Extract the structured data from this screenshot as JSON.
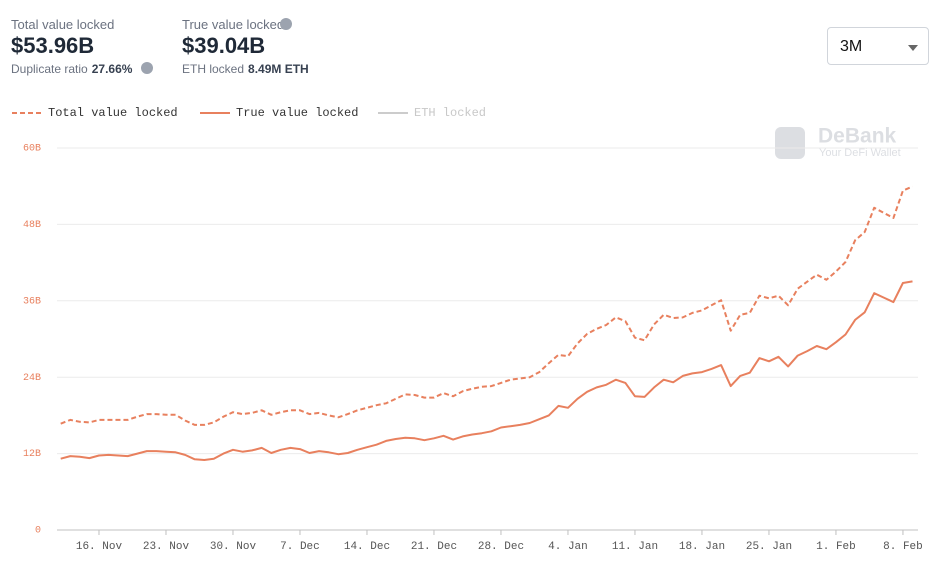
{
  "header": {
    "tvl_label": "Total value locked",
    "tvl_value": "$53.96B",
    "dup_label": "Duplicate ratio",
    "dup_value": "27.66%",
    "true_label": "True value locked",
    "true_value": "$39.04B",
    "eth_label": "ETH locked",
    "eth_value": "8.49M ETH"
  },
  "range_select": "3M",
  "watermark": {
    "brand": "DeBank",
    "tagline": "Your DeFi Wallet"
  },
  "chart_data": {
    "type": "line",
    "categories": [
      null,
      null,
      null,
      null,
      "16. Nov",
      null,
      null,
      null,
      null,
      null,
      null,
      "23. Nov",
      null,
      null,
      null,
      null,
      null,
      null,
      "30. Nov",
      null,
      null,
      null,
      null,
      null,
      null,
      "7. Dec",
      null,
      null,
      null,
      null,
      null,
      null,
      "14. Dec",
      null,
      null,
      null,
      null,
      null,
      null,
      "21. Dec",
      null,
      null,
      null,
      null,
      null,
      null,
      "28. Dec",
      null,
      null,
      null,
      null,
      null,
      null,
      "4. Jan",
      null,
      null,
      null,
      null,
      null,
      null,
      "11. Jan",
      null,
      null,
      null,
      null,
      null,
      null,
      "18. Jan",
      null,
      null,
      null,
      null,
      null,
      null,
      "25. Jan",
      null,
      null,
      null,
      null,
      null,
      null,
      "1. Feb",
      null,
      null,
      null,
      null,
      null,
      null,
      "8. Feb",
      null
    ],
    "series": [
      {
        "name": "Total value locked",
        "color": "#e8805e",
        "dashed": true,
        "values": [
          16.7,
          17.3,
          17.0,
          16.9,
          17.3,
          17.3,
          17.3,
          17.3,
          17.8,
          18.2,
          18.2,
          18.1,
          18.1,
          17.2,
          16.5,
          16.5,
          16.9,
          17.8,
          18.5,
          18.2,
          18.4,
          18.8,
          18.1,
          18.5,
          18.8,
          18.8,
          18.2,
          18.4,
          18.0,
          17.7,
          18.2,
          18.8,
          19.2,
          19.6,
          19.9,
          20.6,
          21.3,
          21.2,
          20.8,
          20.8,
          21.5,
          21.0,
          21.8,
          22.2,
          22.5,
          22.6,
          23.1,
          23.6,
          23.8,
          24.0,
          24.8,
          26.2,
          27.5,
          27.3,
          29.3,
          30.8,
          31.6,
          32.2,
          33.4,
          32.8,
          30.2,
          29.8,
          32.3,
          33.8,
          33.3,
          33.4,
          34.1,
          34.5,
          35.3,
          36.1,
          31.3,
          33.8,
          34.1,
          36.8,
          36.4,
          36.8,
          35.3,
          37.9,
          39.0,
          40.1,
          39.3,
          40.6,
          42.1,
          45.5,
          46.8,
          50.6,
          49.8,
          49.0,
          53.3,
          53.96
        ]
      },
      {
        "name": "True value locked",
        "color": "#e8805e",
        "dashed": false,
        "values": [
          11.2,
          11.6,
          11.5,
          11.3,
          11.7,
          11.8,
          11.7,
          11.6,
          12.0,
          12.4,
          12.4,
          12.3,
          12.2,
          11.8,
          11.1,
          11.0,
          11.2,
          12.0,
          12.6,
          12.3,
          12.5,
          12.9,
          12.1,
          12.6,
          12.9,
          12.7,
          12.1,
          12.4,
          12.2,
          11.9,
          12.1,
          12.6,
          13.0,
          13.4,
          14.0,
          14.3,
          14.5,
          14.4,
          14.1,
          14.4,
          14.8,
          14.2,
          14.7,
          15.0,
          15.2,
          15.5,
          16.1,
          16.3,
          16.5,
          16.8,
          17.4,
          18.0,
          19.5,
          19.2,
          20.6,
          21.7,
          22.4,
          22.8,
          23.6,
          23.1,
          21.0,
          20.9,
          22.4,
          23.6,
          23.2,
          24.2,
          24.6,
          24.8,
          25.3,
          25.9,
          22.6,
          24.2,
          24.7,
          27.0,
          26.5,
          27.2,
          25.7,
          27.4,
          28.1,
          28.9,
          28.4,
          29.5,
          30.7,
          33.0,
          34.2,
          37.2,
          36.5,
          35.8,
          38.8,
          39.04
        ]
      },
      {
        "name": "ETH locked",
        "color": "#cccccc",
        "hidden": true
      }
    ],
    "ylim": [
      0,
      60
    ],
    "yticks": [
      0,
      {
        "value": 12,
        "label": "12B"
      },
      {
        "value": 24,
        "label": "24B"
      },
      {
        "value": 36,
        "label": "36B"
      },
      {
        "value": 48,
        "label": "48B"
      },
      {
        "value": 60,
        "label": "60B"
      }
    ],
    "grid": true
  }
}
